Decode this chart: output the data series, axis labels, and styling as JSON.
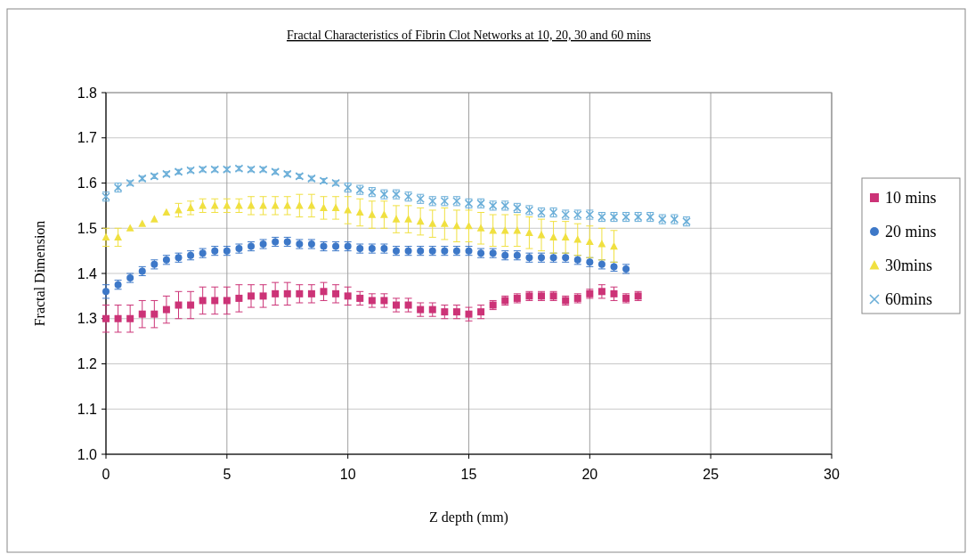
{
  "chart_data": {
    "type": "scatter",
    "title": "Fractal Characteristics of Fibrin Clot Networks at 10, 20, 30 and 60 mins",
    "xlabel": "Z depth (mm)",
    "ylabel": "Fractal Dimension",
    "xlim": [
      0,
      30
    ],
    "xticks": [
      0,
      5,
      10,
      15,
      20,
      25,
      30
    ],
    "ylim": [
      1,
      1.8
    ],
    "yticks": [
      {
        "value": 1,
        "label": "1.0"
      },
      {
        "value": 1.1,
        "label": "1.1"
      },
      {
        "value": 1.2,
        "label": "1.2"
      },
      {
        "value": 1.3,
        "label": "1.3"
      },
      {
        "value": 1.4,
        "label": "1.4"
      },
      {
        "value": 1.5,
        "label": "1.5"
      },
      {
        "value": 1.6,
        "label": "1.6"
      },
      {
        "value": 1.7,
        "label": "1.7"
      },
      {
        "value": 1.8,
        "label": "1.8"
      }
    ],
    "grid": true,
    "legend": "right",
    "series": [
      {
        "name": "10 mins",
        "color": "#cc3377",
        "marker": "square",
        "x": [
          0,
          0.5,
          1,
          1.5,
          2,
          2.5,
          3,
          3.5,
          4,
          4.5,
          5,
          5.5,
          6,
          6.5,
          7,
          7.5,
          8,
          8.5,
          9,
          9.5,
          10,
          10.5,
          11,
          11.5,
          12,
          12.5,
          13,
          13.5,
          14,
          14.5,
          15,
          15.5,
          16,
          16.5,
          17,
          17.5,
          18,
          18.5,
          19,
          19.5,
          20,
          20.5,
          21,
          21.5,
          22
        ],
        "values": [
          1.3,
          1.3,
          1.3,
          1.31,
          1.31,
          1.32,
          1.33,
          1.33,
          1.34,
          1.34,
          1.34,
          1.345,
          1.35,
          1.35,
          1.355,
          1.355,
          1.355,
          1.355,
          1.36,
          1.355,
          1.35,
          1.345,
          1.34,
          1.34,
          1.33,
          1.33,
          1.32,
          1.32,
          1.315,
          1.315,
          1.31,
          1.315,
          1.33,
          1.34,
          1.345,
          1.35,
          1.35,
          1.35,
          1.34,
          1.345,
          1.355,
          1.36,
          1.355,
          1.345,
          1.35
        ],
        "errors": [
          0.03,
          0.03,
          0.03,
          0.03,
          0.03,
          0.03,
          0.03,
          0.03,
          0.03,
          0.03,
          0.03,
          0.03,
          0.025,
          0.025,
          0.025,
          0.025,
          0.02,
          0.02,
          0.02,
          0.02,
          0.02,
          0.015,
          0.015,
          0.015,
          0.015,
          0.015,
          0.015,
          0.015,
          0.015,
          0.015,
          0.015,
          0.015,
          0.01,
          0.01,
          0.01,
          0.01,
          0.01,
          0.01,
          0.01,
          0.01,
          0.01,
          0.015,
          0.015,
          0.01,
          0.01
        ]
      },
      {
        "name": "20 mins",
        "color": "#3d78c8",
        "marker": "circle",
        "x": [
          0,
          0.5,
          1,
          1.5,
          2,
          2.5,
          3,
          3.5,
          4,
          4.5,
          5,
          5.5,
          6,
          6.5,
          7,
          7.5,
          8,
          8.5,
          9,
          9.5,
          10,
          10.5,
          11,
          11.5,
          12,
          12.5,
          13,
          13.5,
          14,
          14.5,
          15,
          15.5,
          16,
          16.5,
          17,
          17.5,
          18,
          18.5,
          19,
          19.5,
          20,
          20.5,
          21,
          21.5
        ],
        "values": [
          1.36,
          1.375,
          1.39,
          1.405,
          1.42,
          1.43,
          1.435,
          1.44,
          1.445,
          1.45,
          1.45,
          1.455,
          1.46,
          1.465,
          1.47,
          1.47,
          1.465,
          1.465,
          1.46,
          1.46,
          1.46,
          1.455,
          1.455,
          1.455,
          1.45,
          1.45,
          1.45,
          1.45,
          1.45,
          1.45,
          1.45,
          1.445,
          1.445,
          1.44,
          1.44,
          1.435,
          1.435,
          1.435,
          1.435,
          1.43,
          1.425,
          1.42,
          1.415,
          1.41
        ],
        "errors": [
          0.015,
          0.01,
          0.01,
          0.01,
          0.01,
          0.01,
          0.01,
          0.01,
          0.01,
          0.01,
          0.01,
          0.01,
          0.01,
          0.01,
          0.01,
          0.01,
          0.01,
          0.01,
          0.01,
          0.01,
          0.01,
          0.01,
          0.01,
          0.01,
          0.01,
          0.01,
          0.01,
          0.01,
          0.01,
          0.01,
          0.01,
          0.01,
          0.01,
          0.01,
          0.01,
          0.01,
          0.01,
          0.01,
          0.01,
          0.01,
          0.01,
          0.01,
          0.01,
          0.01
        ]
      },
      {
        "name": "30mins",
        "color": "#f0e040",
        "marker": "triangle",
        "x": [
          0,
          0.5,
          1,
          1.5,
          2,
          2.5,
          3,
          3.5,
          4,
          4.5,
          5,
          5.5,
          6,
          6.5,
          7,
          7.5,
          8,
          8.5,
          9,
          9.5,
          10,
          10.5,
          11,
          11.5,
          12,
          12.5,
          13,
          13.5,
          14,
          14.5,
          15,
          15.5,
          16,
          16.5,
          17,
          17.5,
          18,
          18.5,
          19,
          19.5,
          20,
          20.5,
          21
        ],
        "values": [
          1.48,
          1.48,
          1.5,
          1.51,
          1.52,
          1.535,
          1.54,
          1.545,
          1.55,
          1.55,
          1.55,
          1.55,
          1.55,
          1.55,
          1.55,
          1.55,
          1.55,
          1.55,
          1.545,
          1.545,
          1.54,
          1.535,
          1.53,
          1.53,
          1.52,
          1.52,
          1.515,
          1.51,
          1.51,
          1.505,
          1.505,
          1.5,
          1.495,
          1.495,
          1.495,
          1.49,
          1.485,
          1.48,
          1.48,
          1.475,
          1.47,
          1.465,
          1.46
        ],
        "errors": [
          0.02,
          0.02,
          null,
          null,
          null,
          null,
          0.015,
          0.015,
          0.015,
          0.015,
          0.015,
          0.015,
          0.02,
          0.02,
          0.02,
          0.02,
          0.025,
          0.025,
          0.025,
          0.025,
          0.03,
          0.03,
          0.03,
          0.03,
          0.03,
          0.03,
          0.03,
          0.03,
          0.035,
          0.035,
          0.035,
          0.035,
          0.035,
          0.035,
          0.035,
          0.035,
          0.035,
          0.035,
          0.035,
          0.035,
          0.035,
          0.035,
          0.035
        ]
      },
      {
        "name": "60mins",
        "color": "#6aaed8",
        "marker": "cross",
        "x": [
          0,
          0.5,
          1,
          1.5,
          2,
          2.5,
          3,
          3.5,
          4,
          4.5,
          5,
          5.5,
          6,
          6.5,
          7,
          7.5,
          8,
          8.5,
          9,
          9.5,
          10,
          10.5,
          11,
          11.5,
          12,
          12.5,
          13,
          13.5,
          14,
          14.5,
          15,
          15.5,
          16,
          16.5,
          17,
          17.5,
          18,
          18.5,
          19,
          19.5,
          20,
          20.5,
          21,
          21.5,
          22,
          22.5,
          23,
          23.5,
          24
        ],
        "values": [
          1.57,
          1.59,
          1.6,
          1.61,
          1.615,
          1.62,
          1.625,
          1.628,
          1.63,
          1.63,
          1.63,
          1.632,
          1.63,
          1.63,
          1.625,
          1.62,
          1.615,
          1.61,
          1.605,
          1.6,
          1.59,
          1.585,
          1.58,
          1.575,
          1.575,
          1.57,
          1.565,
          1.56,
          1.56,
          1.56,
          1.555,
          1.555,
          1.55,
          1.55,
          1.545,
          1.54,
          1.535,
          1.535,
          1.53,
          1.53,
          1.53,
          1.525,
          1.525,
          1.525,
          1.525,
          1.525,
          1.52,
          1.52,
          1.515
        ],
        "errors": [
          0.01,
          0.01,
          0.005,
          0.005,
          0.005,
          0.005,
          0.005,
          0.005,
          0.005,
          0.005,
          0.005,
          0.005,
          0.005,
          0.005,
          0.005,
          0.005,
          0.005,
          0.005,
          0.005,
          0.005,
          0.01,
          0.01,
          0.01,
          0.01,
          0.01,
          0.01,
          0.01,
          0.01,
          0.01,
          0.01,
          0.01,
          0.01,
          0.01,
          0.01,
          0.01,
          0.01,
          0.01,
          0.01,
          0.01,
          0.01,
          0.01,
          0.01,
          0.01,
          0.01,
          0.01,
          0.01,
          0.01,
          0.01,
          0.01
        ]
      }
    ]
  }
}
